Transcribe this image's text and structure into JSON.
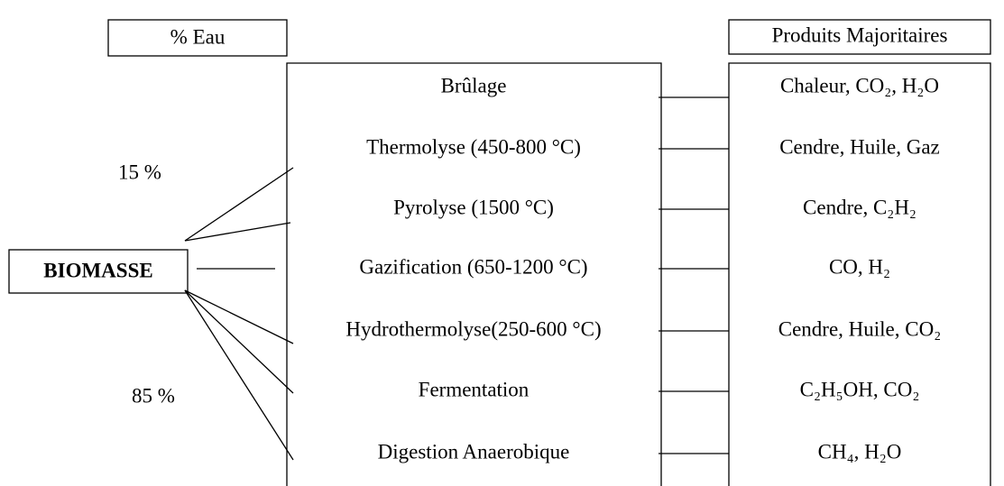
{
  "header": {
    "water_label": "% Eau",
    "products_label": "Produits Majoritaires"
  },
  "source": {
    "label": "BIOMASSE"
  },
  "water_levels": [
    "15 %",
    "85 %"
  ],
  "processes": [
    {
      "label": "Brûlage",
      "products": "Chaleur, CO₂, H₂O"
    },
    {
      "label": "Thermolyse (450-800 °C)",
      "products": "Cendre, Huile, Gaz"
    },
    {
      "label": "Pyrolyse (1500 °C)",
      "products": "Cendre, C₂H₂"
    },
    {
      "label": "Gazification (650-1200 °C)",
      "products": "CO, H₂"
    },
    {
      "label": "Hydrothermolyse(250-600 °C)",
      "products": "Cendre, Huile, CO₂"
    },
    {
      "label": "Fermentation",
      "products": "C₂H₅OH, CO₂"
    },
    {
      "label": "Digestion Anaerobique",
      "products": "CH₄, H₂O"
    }
  ]
}
